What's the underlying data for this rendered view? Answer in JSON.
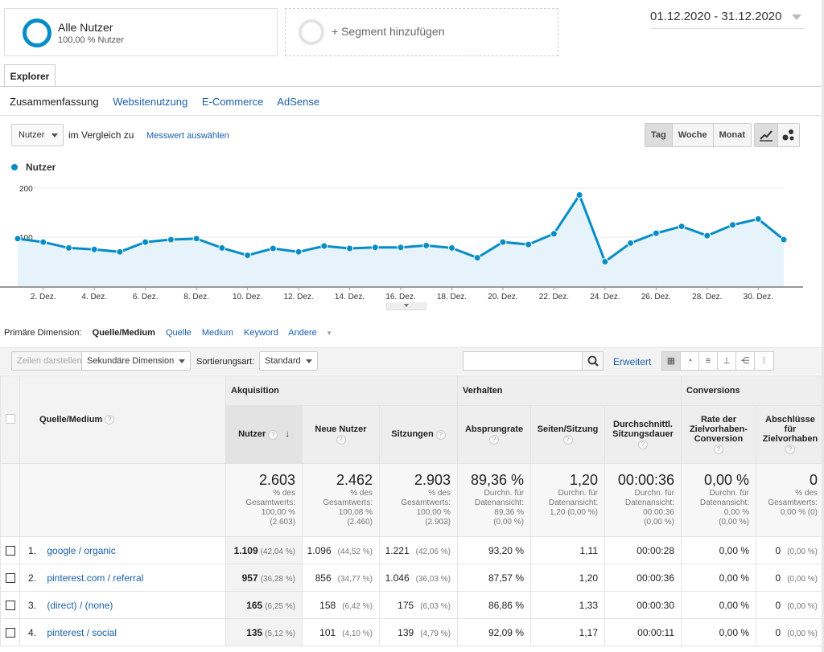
{
  "segments": {
    "primary": {
      "title": "Alle Nutzer",
      "subtitle": "100,00 % Nutzer"
    },
    "add_label": "+ Segment hinzufügen"
  },
  "date_range": "01.12.2020 - 31.12.2020",
  "tabs": {
    "explorer": "Explorer"
  },
  "subtabs": [
    "Zusammenfassung",
    "Websitenutzung",
    "E-Commerce",
    "AdSense"
  ],
  "controls": {
    "metric_dropdown": "Nutzer",
    "compare_label": "im Vergleich zu",
    "select_metric_link": "Messwert auswählen",
    "granularity": [
      "Tag",
      "Woche",
      "Monat"
    ]
  },
  "chart_data": {
    "type": "line",
    "legend": [
      "Nutzer"
    ],
    "series": [
      {
        "name": "Nutzer",
        "values": [
          97,
          90,
          78,
          75,
          70,
          90,
          95,
          97,
          78,
          63,
          77,
          70,
          82,
          77,
          79,
          79,
          83,
          78,
          58,
          90,
          85,
          107,
          186,
          50,
          88,
          108,
          122,
          103,
          125,
          137,
          95
        ]
      }
    ],
    "x_tick_labels": [
      "2. Dez.",
      "4. Dez.",
      "6. Dez.",
      "8. Dez.",
      "10. Dez.",
      "12. Dez.",
      "14. Dez.",
      "16. Dez.",
      "18. Dez.",
      "20. Dez.",
      "22. Dez.",
      "24. Dez.",
      "26. Dez.",
      "28. Dez.",
      "30. Dez."
    ],
    "y_tick_labels": [
      "100",
      "200"
    ],
    "ylim": [
      0,
      200
    ],
    "grid": true,
    "color": "#058dc7"
  },
  "dimensions": {
    "label": "Primäre Dimension:",
    "active": "Quelle/Medium",
    "options": [
      "Quelle",
      "Medium",
      "Keyword",
      "Andere"
    ]
  },
  "toolbar": {
    "create_rows": "Zeilen darstellen",
    "secondary_dimension": "Sekundäre Dimension",
    "sort_label": "Sortierungsart:",
    "sort_value": "Standard",
    "advanced": "Erweitert"
  },
  "table": {
    "groups": {
      "acquisition": "Akquisition",
      "behavior": "Verhalten",
      "conversions": "Conversions"
    },
    "headers": {
      "source": "Quelle/Medium",
      "users": "Nutzer",
      "new_users": "Neue Nutzer",
      "sessions": "Sitzungen",
      "bounce": "Absprungrate",
      "pages": "Seiten/Sitzung",
      "duration": "Durchschnittl. Sitzungsdauer",
      "conv_rate": "Rate der Zielvorhaben-Conversion",
      "goals": "Abschlüsse für Zielvorhaben"
    },
    "totals": {
      "users": {
        "value": "2.603",
        "lines": [
          "% des",
          "Gesamtwerts:",
          "100,00 %",
          "(2.603)"
        ]
      },
      "new_users": {
        "value": "2.462",
        "lines": [
          "% des",
          "Gesamtwerts:",
          "100,08 %",
          "(2.460)"
        ]
      },
      "sessions": {
        "value": "2.903",
        "lines": [
          "% des",
          "Gesamtwerts:",
          "100,00 %",
          "(2.903)"
        ]
      },
      "bounce": {
        "value": "89,36 %",
        "lines": [
          "Durchn. für",
          "Datenansicht:",
          "89,36 %",
          "(0,00 %)"
        ]
      },
      "pages": {
        "value": "1,20",
        "lines": [
          "Durchn. für",
          "Datenansicht:",
          "1,20 (0,00 %)"
        ]
      },
      "duration": {
        "value": "00:00:36",
        "lines": [
          "Durchn. für",
          "Datenansicht:",
          "00:00:36",
          "(0,00 %)"
        ]
      },
      "conv_rate": {
        "value": "0,00 %",
        "lines": [
          "Durchn. für",
          "Datenansicht:",
          "0,00 %",
          "(0,00 %)"
        ]
      },
      "goals": {
        "value": "0",
        "lines": [
          "% des",
          "Gesamtwerts:",
          "0,00 % (0)"
        ]
      }
    },
    "rows": [
      {
        "idx": "1.",
        "source": "google / organic",
        "users": "1.109",
        "users_pct": "(42,04 %)",
        "new_users": "1.096",
        "new_users_pct": "(44,52 %)",
        "sessions": "1.221",
        "sessions_pct": "(42,06 %)",
        "bounce": "93,20 %",
        "pages": "1,11",
        "duration": "00:00:28",
        "conv_rate": "0,00 %",
        "goals": "0",
        "goals_pct": "(0,00 %)"
      },
      {
        "idx": "2.",
        "source": "pinterest.com / referral",
        "users": "957",
        "users_pct": "(36,28 %)",
        "new_users": "856",
        "new_users_pct": "(34,77 %)",
        "sessions": "1.046",
        "sessions_pct": "(36,03 %)",
        "bounce": "87,57 %",
        "pages": "1,20",
        "duration": "00:00:36",
        "conv_rate": "0,00 %",
        "goals": "0",
        "goals_pct": "(0,00 %)"
      },
      {
        "idx": "3.",
        "source": "(direct) / (none)",
        "users": "165",
        "users_pct": "(6,25 %)",
        "new_users": "158",
        "new_users_pct": "(6,42 %)",
        "sessions": "175",
        "sessions_pct": "(6,03 %)",
        "bounce": "86,86 %",
        "pages": "1,33",
        "duration": "00:00:30",
        "conv_rate": "0,00 %",
        "goals": "0",
        "goals_pct": "(0,00 %)"
      },
      {
        "idx": "4.",
        "source": "pinterest / social",
        "users": "135",
        "users_pct": "(5,12 %)",
        "new_users": "101",
        "new_users_pct": "(4,10 %)",
        "sessions": "139",
        "sessions_pct": "(4,79 %)",
        "bounce": "92,09 %",
        "pages": "1,17",
        "duration": "00:00:11",
        "conv_rate": "0,00 %",
        "goals": "0",
        "goals_pct": "(0,00 %)"
      }
    ]
  }
}
